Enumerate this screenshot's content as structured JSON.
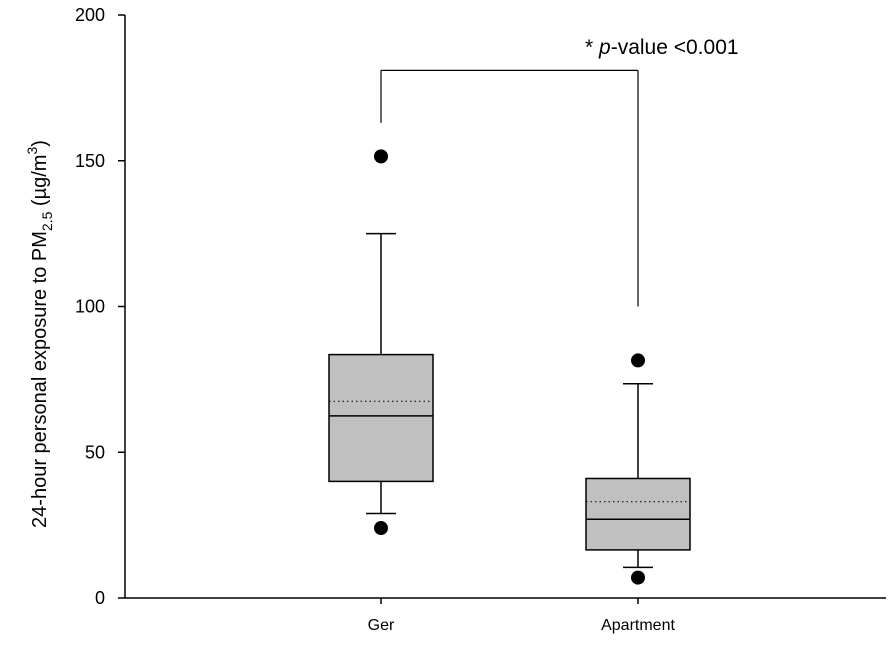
{
  "chart_data": {
    "type": "box",
    "categories": [
      "Ger",
      "Apartment"
    ],
    "ylabel": {
      "main": "24-hour personal exposure to PM",
      "subscript": "2.5",
      "unit_open": " (µg/m",
      "superscript": "3",
      "unit_close": ")"
    },
    "ylim": [
      0,
      200
    ],
    "yticks": [
      0,
      50,
      100,
      150,
      200
    ],
    "grid": false,
    "boxes": [
      {
        "name": "Ger",
        "whisker_low": 29,
        "q1": 40,
        "median": 62.5,
        "mean": 67.5,
        "q3": 83.5,
        "whisker_high": 125,
        "outliers": [
          24,
          151.5
        ]
      },
      {
        "name": "Apartment",
        "whisker_low": 10.5,
        "q1": 16.5,
        "median": 27,
        "mean": 33,
        "q3": 41,
        "whisker_high": 73.5,
        "outliers": [
          7,
          81.5
        ]
      }
    ],
    "significance": {
      "from": "Ger",
      "to": "Apartment",
      "bracket_y": 181,
      "left_end_y": 163,
      "right_end_y": 100,
      "label_star": "* ",
      "label_p": "p",
      "label_rest": "-value <0.001"
    },
    "colors": {
      "box_fill": "#c0c0c0",
      "stroke": "#000000"
    }
  }
}
